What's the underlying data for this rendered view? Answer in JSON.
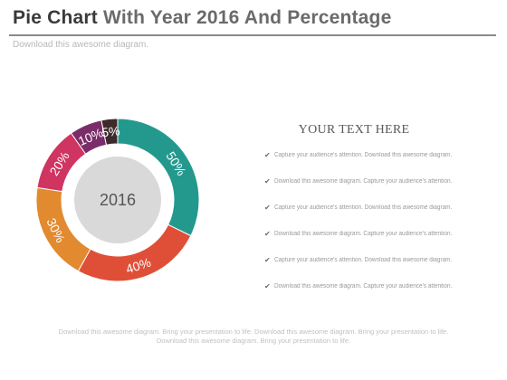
{
  "header": {
    "title_part1": "Pie Chart",
    "title_part2": "With Year 2016 And Percentage",
    "subtitle": "Download this awesome diagram."
  },
  "chart_data": {
    "type": "pie",
    "center_label": "2016",
    "slices": [
      {
        "label": "50%",
        "value": 50,
        "color": "#23998e"
      },
      {
        "label": "40%",
        "value": 40,
        "color": "#df4f38"
      },
      {
        "label": "30%",
        "value": 30,
        "color": "#e28a30"
      },
      {
        "label": "20%",
        "value": 20,
        "color": "#d03460"
      },
      {
        "label": "10%",
        "value": 10,
        "color": "#7b2d6a"
      },
      {
        "label": "5%",
        "value": 5,
        "color": "#3e2a2c"
      }
    ]
  },
  "panel": {
    "heading": "YOUR TEXT HERE",
    "bullets": [
      "Capture your audience's  attention.  Download this  awesome diagram.",
      "Download this awesome diagram.  Capture  your audience's  attention.",
      "Capture your audience's  attention.  Download this  awesome diagram.",
      "Download this awesome diagram.  Capture  your audience's  attention.",
      "Capture your audience's  attention.  Download this  awesome diagram.",
      "Download this awesome diagram.  Capture  your audience's  attention."
    ]
  },
  "footer": {
    "line1": "Download  this awesome  diagram.  Bring  your  presentation  to life.  Download  this  awesome  diagram.  Bring  your  presentation  to life.",
    "line2": "Download  this awesome  diagram.  Bring your presentation  to life."
  },
  "colors": {
    "center_disc": "#d9d9d9",
    "slice_label": "#ffffff",
    "center_label": "#555555"
  }
}
